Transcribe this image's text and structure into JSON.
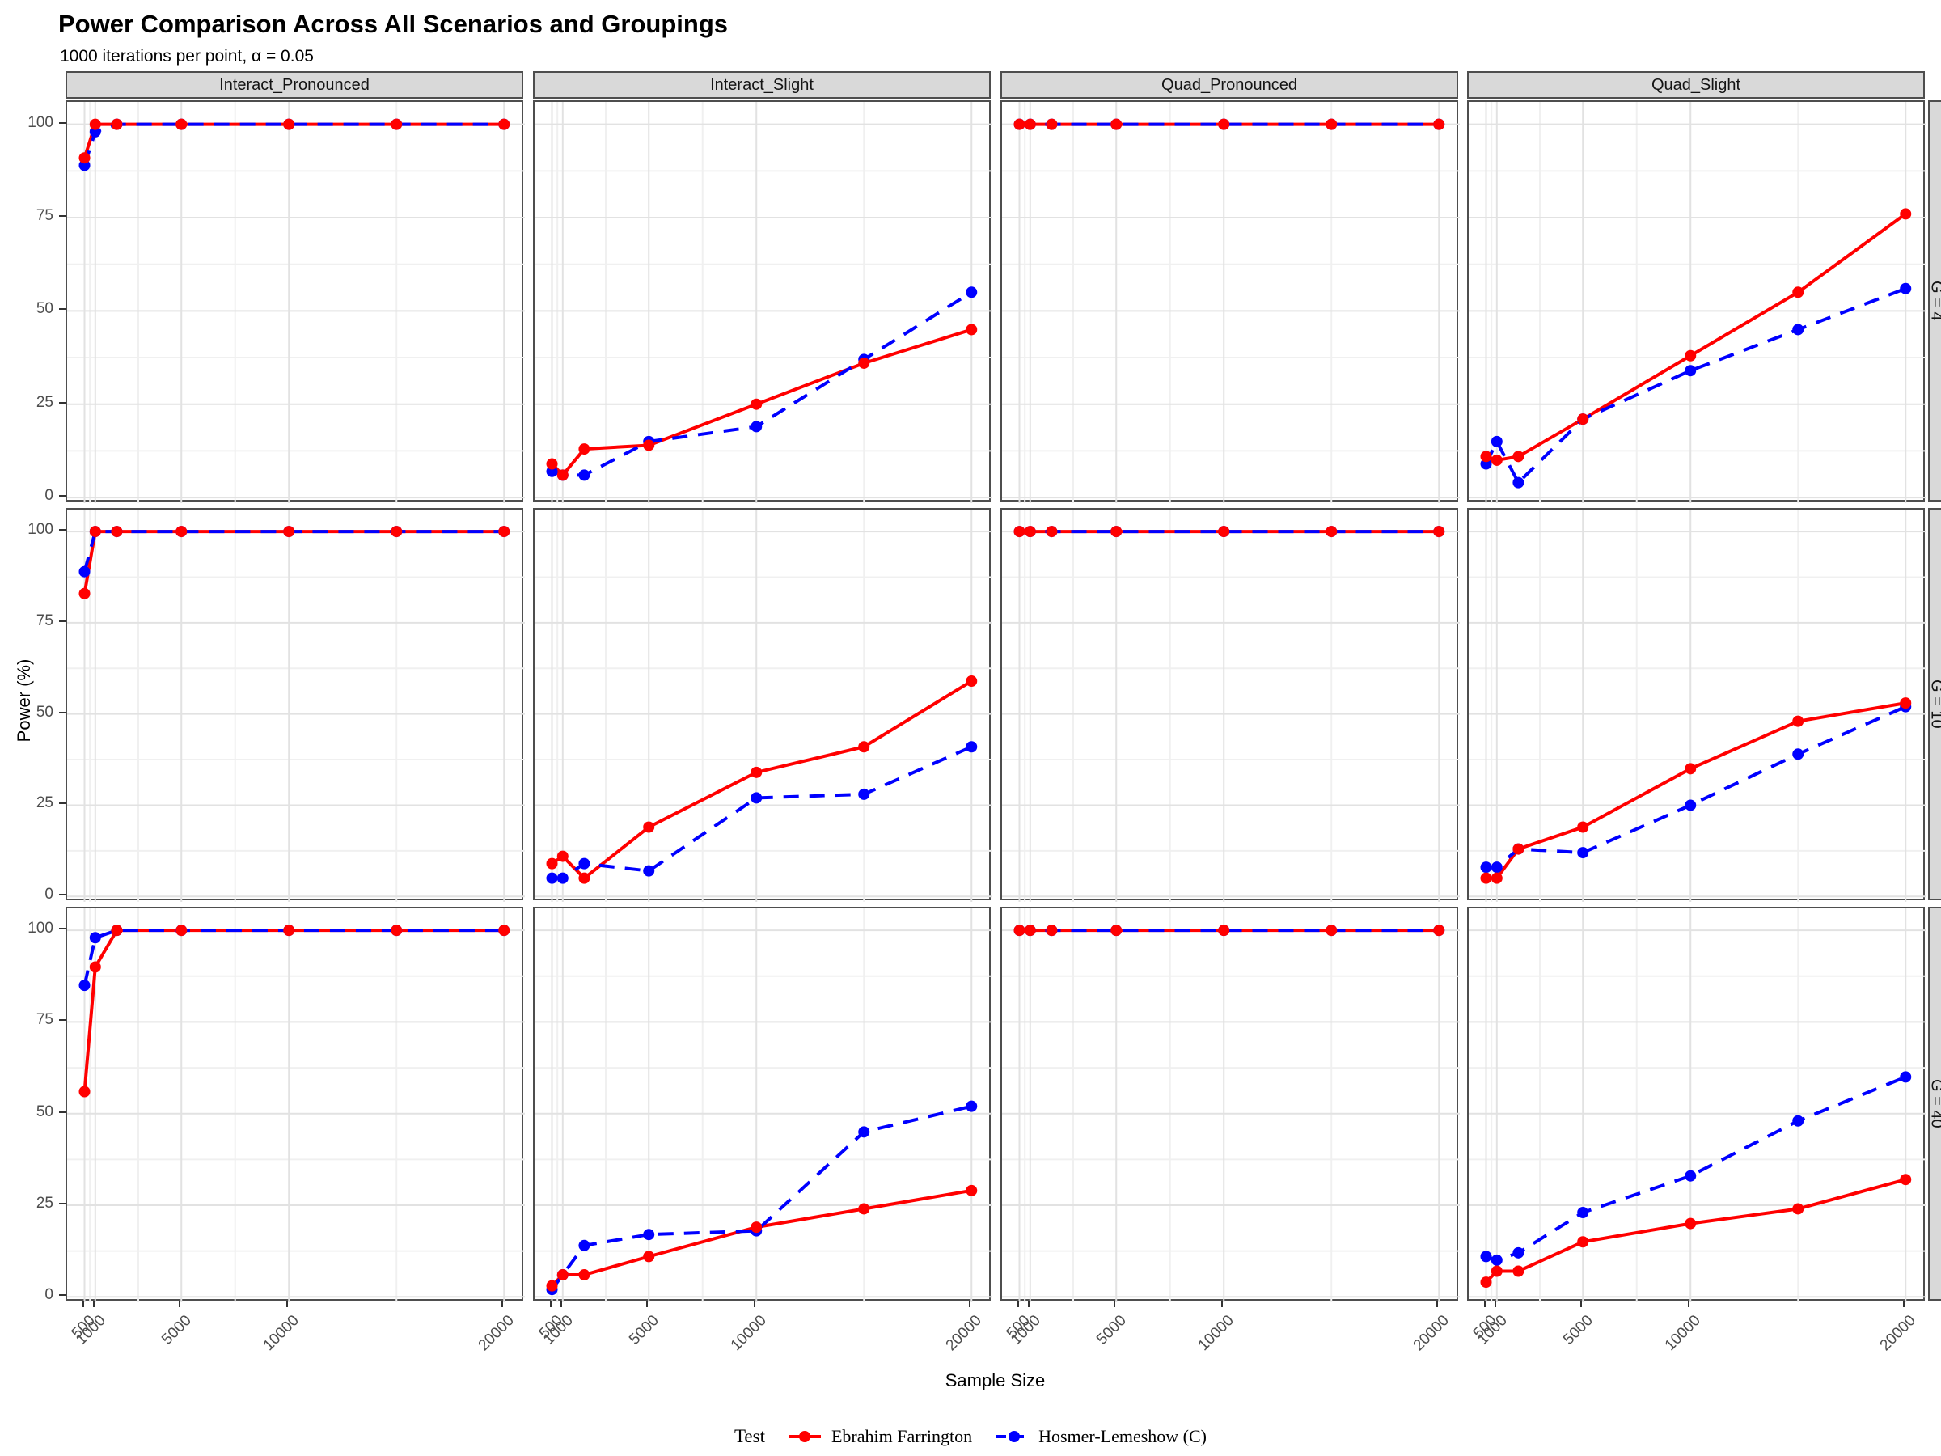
{
  "chart_data": {
    "type": "line",
    "title": "Power Comparison Across All Scenarios and Groupings",
    "subtitle": "1000 iterations per point, α = 0.05",
    "xlabel": "Sample Size",
    "ylabel": "Power (%)",
    "x": [
      500,
      1000,
      2000,
      5000,
      10000,
      15000,
      20000
    ],
    "xlim": [
      500,
      20000
    ],
    "ylim": [
      0,
      100
    ],
    "x_ticks": [
      500,
      1000,
      5000,
      10000,
      20000
    ],
    "x_tick_labels": [
      "500",
      "1000",
      "5000",
      "10000",
      "20000"
    ],
    "x_minor": [
      750,
      3000,
      7500,
      15000
    ],
    "y_ticks": [
      100,
      75,
      50,
      25,
      0
    ],
    "y_tick_labels": [
      "100",
      "75",
      "50",
      "25",
      "0"
    ],
    "y_minor": [
      87.5,
      62.5,
      37.5,
      12.5
    ],
    "grid": "on",
    "legend_position": "bottom",
    "col_facets": [
      "Interact_Pronounced",
      "Interact_Slight",
      "Quad_Pronounced",
      "Quad_Slight"
    ],
    "row_facets": [
      "G = 4",
      "G = 10",
      "G = 40"
    ],
    "legend": {
      "title": "Test",
      "items": [
        {
          "label": "Ebrahim Farrington",
          "color": "#FF0000",
          "style": "solid"
        },
        {
          "label": "Hosmer-Lemeshow (C)",
          "color": "#0000FF",
          "style": "dashed"
        }
      ]
    },
    "colors": {
      "ebrahim_farrington": "#FF0000",
      "hosmer_lemeshow": "#0000FF",
      "strip_bg": "#d9d9d9",
      "panel_border": "#4e4e4e",
      "grid_major": "#e2e2e2",
      "grid_minor": "#f0f0f0",
      "tick_text": "#4d4d4d"
    },
    "panels": [
      {
        "row": "G = 4",
        "col": "Interact_Pronounced",
        "ebrahim_farrington": [
          91,
          100,
          100,
          100,
          100,
          100,
          100
        ],
        "hosmer_lemeshow": [
          89,
          98,
          100,
          100,
          100,
          100,
          100
        ]
      },
      {
        "row": "G = 4",
        "col": "Interact_Slight",
        "ebrahim_farrington": [
          9,
          6,
          13,
          14,
          25,
          36,
          45
        ],
        "hosmer_lemeshow": [
          7,
          6,
          6,
          15,
          19,
          37,
          55
        ]
      },
      {
        "row": "G = 4",
        "col": "Quad_Pronounced",
        "ebrahim_farrington": [
          100,
          100,
          100,
          100,
          100,
          100,
          100
        ],
        "hosmer_lemeshow": [
          100,
          100,
          100,
          100,
          100,
          100,
          100
        ]
      },
      {
        "row": "G = 4",
        "col": "Quad_Slight",
        "ebrahim_farrington": [
          11,
          10,
          11,
          21,
          38,
          55,
          76
        ],
        "hosmer_lemeshow": [
          9,
          15,
          4,
          21,
          34,
          45,
          56
        ]
      },
      {
        "row": "G = 10",
        "col": "Interact_Pronounced",
        "ebrahim_farrington": [
          83,
          100,
          100,
          100,
          100,
          100,
          100
        ],
        "hosmer_lemeshow": [
          89,
          100,
          100,
          100,
          100,
          100,
          100
        ]
      },
      {
        "row": "G = 10",
        "col": "Interact_Slight",
        "ebrahim_farrington": [
          9,
          11,
          5,
          19,
          34,
          41,
          59
        ],
        "hosmer_lemeshow": [
          5,
          5,
          9,
          7,
          27,
          28,
          41
        ]
      },
      {
        "row": "G = 10",
        "col": "Quad_Pronounced",
        "ebrahim_farrington": [
          100,
          100,
          100,
          100,
          100,
          100,
          100
        ],
        "hosmer_lemeshow": [
          100,
          100,
          100,
          100,
          100,
          100,
          100
        ]
      },
      {
        "row": "G = 10",
        "col": "Quad_Slight",
        "ebrahim_farrington": [
          5,
          5,
          13,
          19,
          35,
          48,
          53
        ],
        "hosmer_lemeshow": [
          8,
          8,
          13,
          12,
          25,
          39,
          52
        ]
      },
      {
        "row": "G = 40",
        "col": "Interact_Pronounced",
        "ebrahim_farrington": [
          56,
          90,
          100,
          100,
          100,
          100,
          100
        ],
        "hosmer_lemeshow": [
          85,
          98,
          100,
          100,
          100,
          100,
          100
        ]
      },
      {
        "row": "G = 40",
        "col": "Interact_Slight",
        "ebrahim_farrington": [
          3,
          6,
          6,
          11,
          19,
          24,
          29
        ],
        "hosmer_lemeshow": [
          2,
          6,
          14,
          17,
          18,
          45,
          52
        ]
      },
      {
        "row": "G = 40",
        "col": "Quad_Pronounced",
        "ebrahim_farrington": [
          100,
          100,
          100,
          100,
          100,
          100,
          100
        ],
        "hosmer_lemeshow": [
          100,
          100,
          100,
          100,
          100,
          100,
          100
        ]
      },
      {
        "row": "G = 40",
        "col": "Quad_Slight",
        "ebrahim_farrington": [
          4,
          7,
          7,
          15,
          20,
          24,
          32
        ],
        "hosmer_lemeshow": [
          11,
          10,
          12,
          23,
          33,
          48,
          60
        ]
      }
    ]
  }
}
